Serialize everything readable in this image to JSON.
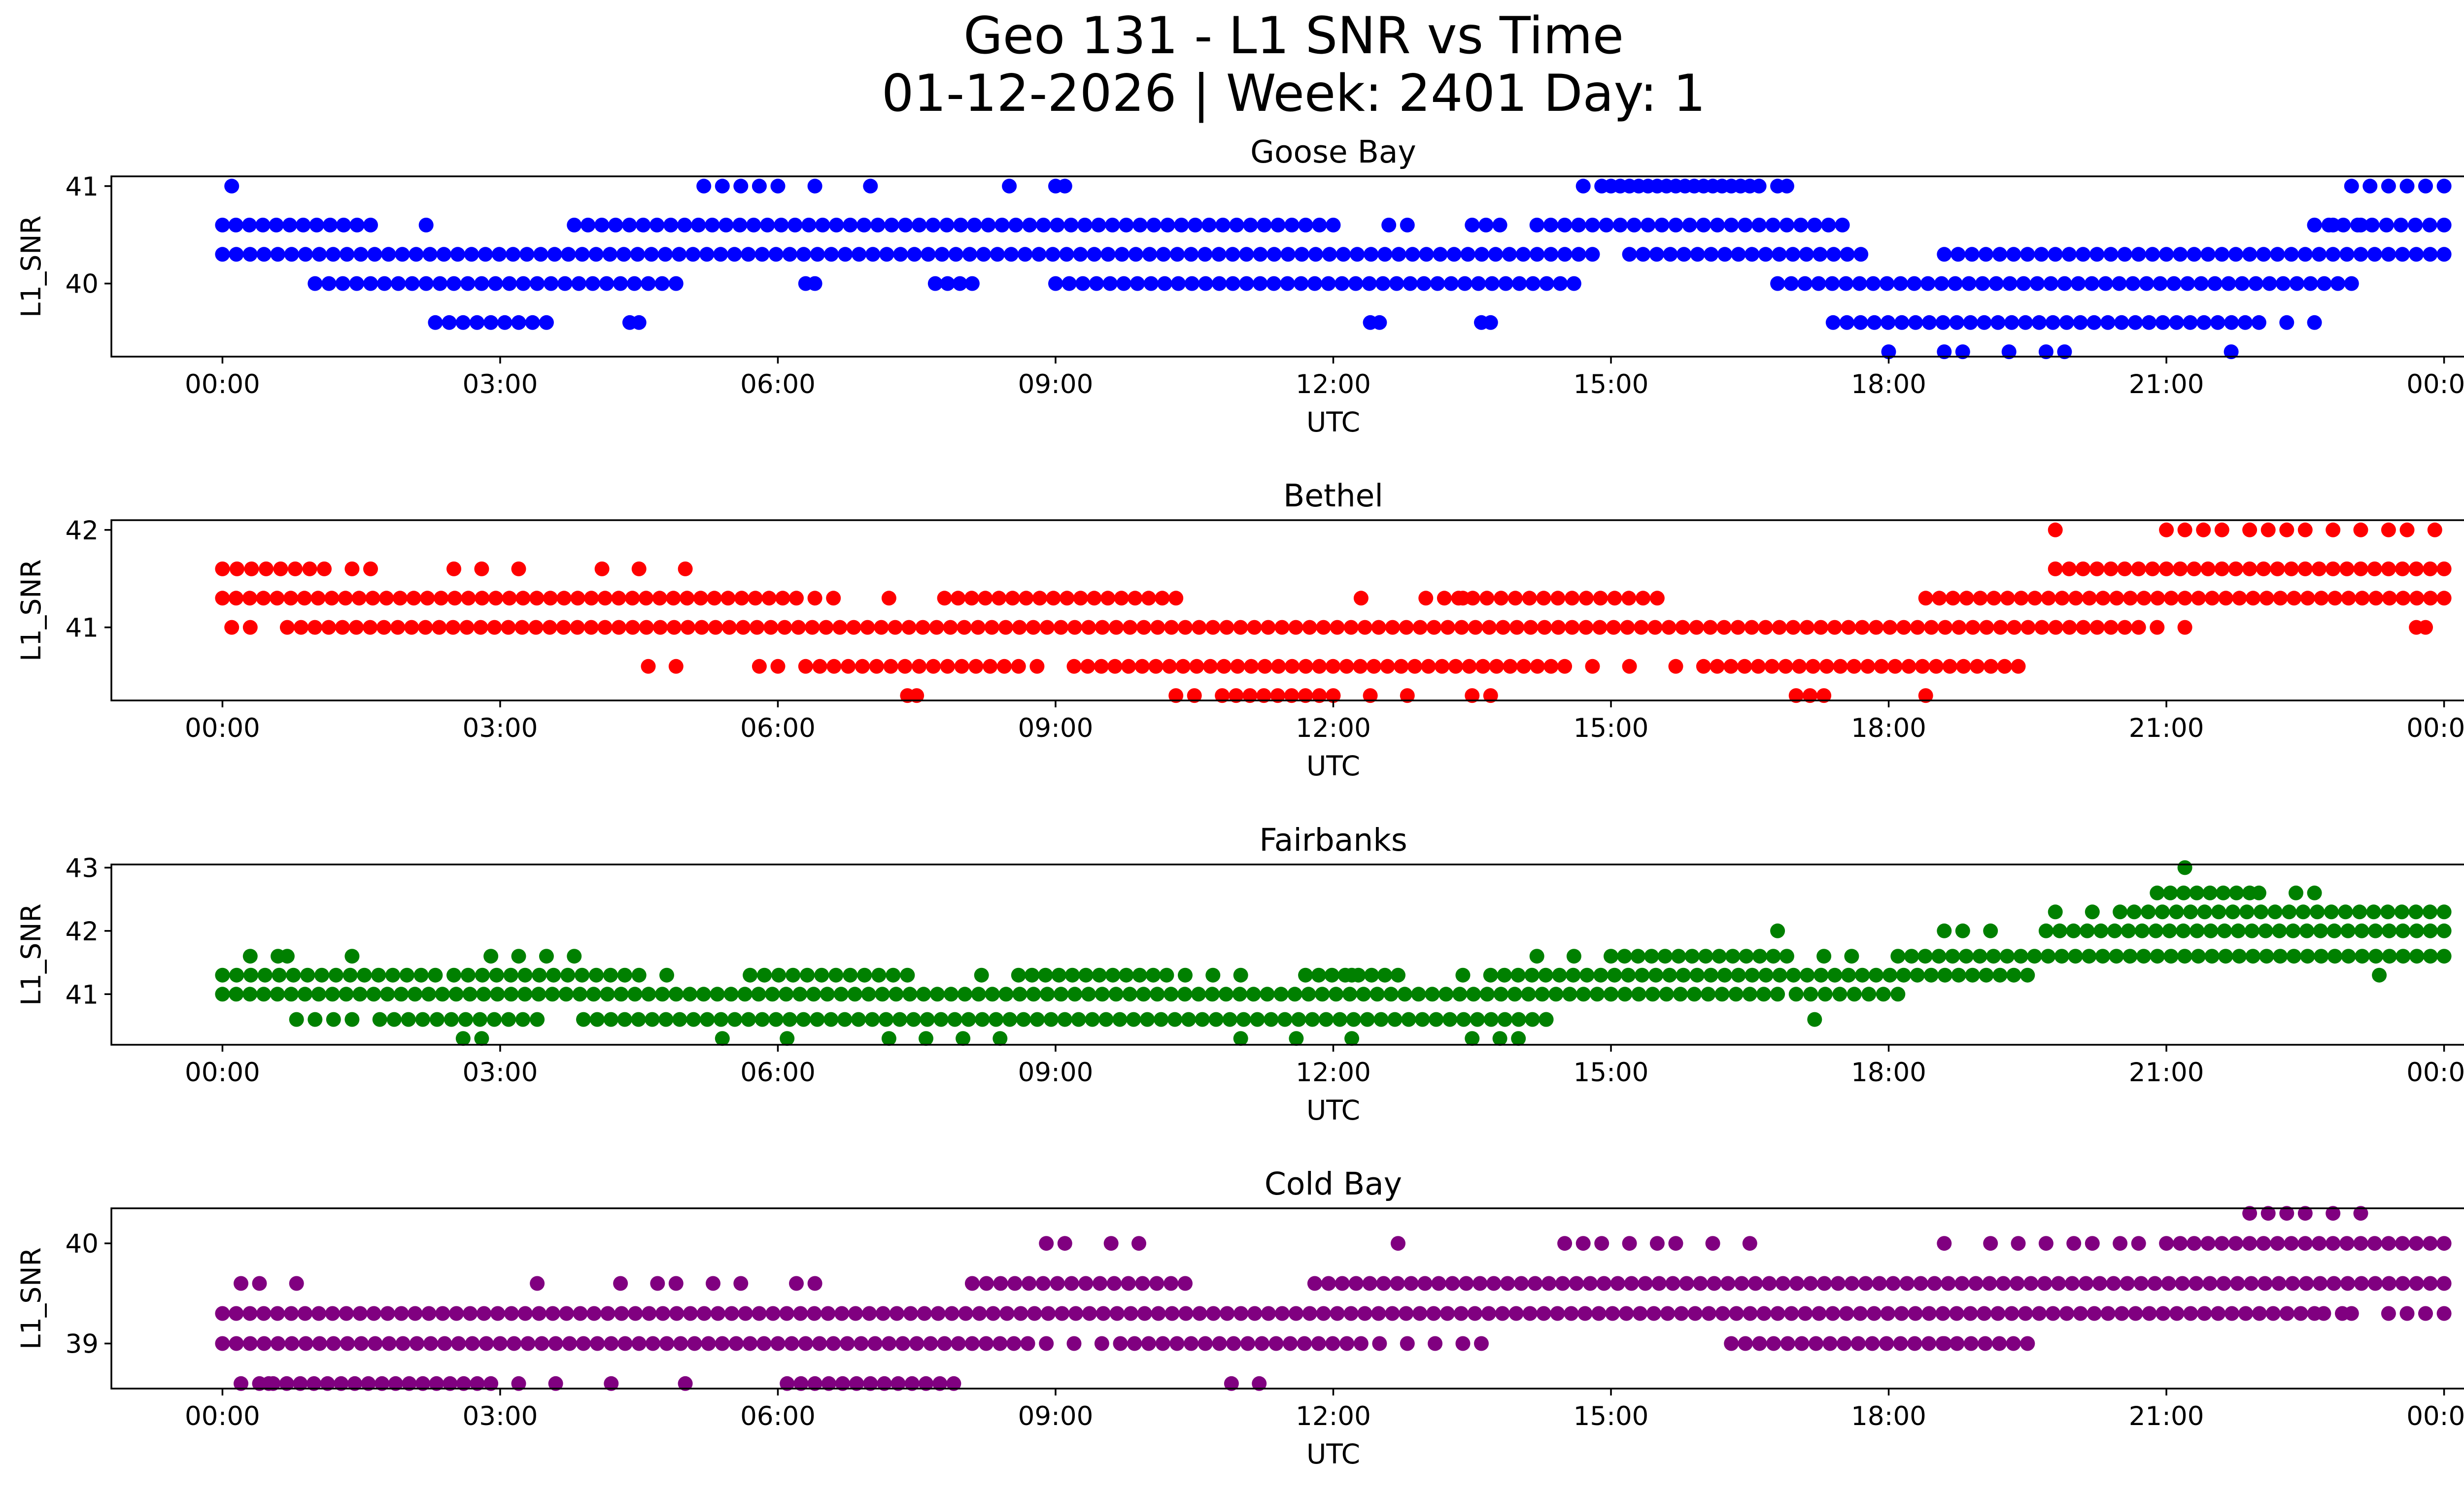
{
  "title": "Geo 131 - L1 SNR vs Time",
  "subtitle": "01-12-2026 | Week: 2401 Day: 1",
  "chart_data": [
    {
      "type": "scatter",
      "title": "Goose Bay",
      "xlabel": "UTC",
      "ylabel": "L1_SNR",
      "color": "#0000ff",
      "x_ticks": [
        "00:00",
        "03:00",
        "06:00",
        "09:00",
        "12:00",
        "15:00",
        "18:00",
        "21:00",
        "00:00"
      ],
      "xlim_hours": [
        -1.2,
        25.2
      ],
      "y_ticks": [
        40,
        41
      ],
      "ylim": [
        39.25,
        41.1
      ],
      "bands": [
        {
          "y": 40.3,
          "segments": [
            [
              0.0,
              14.8
            ],
            [
              15.2,
              17.7
            ],
            [
              18.6,
              24.0
            ]
          ]
        },
        {
          "y": 40.6,
          "segments": [
            [
              0.0,
              1.6
            ],
            [
              3.8,
              12.0
            ],
            [
              12.6,
              12.8
            ],
            [
              13.5,
              13.8
            ],
            [
              14.2,
              17.5
            ],
            [
              22.6,
              24.0
            ]
          ]
        },
        {
          "y": 40.0,
          "segments": [
            [
              1.0,
              4.9
            ],
            [
              6.3,
              6.4
            ],
            [
              7.7,
              8.1
            ],
            [
              9.0,
              14.6
            ],
            [
              16.8,
              23.0
            ]
          ]
        },
        {
          "y": 39.6,
          "segments": [
            [
              2.3,
              3.5
            ],
            [
              4.4,
              4.5
            ],
            [
              12.4,
              12.5
            ],
            [
              13.6,
              13.7
            ],
            [
              17.4,
              22.0
            ]
          ]
        }
      ],
      "scatter": [
        {
          "y": 41.0,
          "x": [
            0.1,
            5.2,
            5.4,
            5.6,
            5.8,
            6.0,
            6.4,
            7.0,
            8.5,
            9.0,
            9.1,
            14.7,
            14.9,
            15.1,
            15.3,
            15.5,
            15.7,
            15.9,
            16.1,
            16.3,
            16.5,
            16.8,
            23.0,
            23.2,
            23.4,
            23.6,
            23.8,
            24.0
          ]
        },
        {
          "y": 41.0,
          "x": [
            15.0,
            15.2,
            15.4,
            15.6,
            15.8,
            16.0,
            16.2,
            16.4,
            16.6,
            16.9
          ]
        },
        {
          "y": 40.6,
          "x": [
            2.2,
            22.6,
            22.8,
            23.1
          ]
        },
        {
          "y": 39.6,
          "x": [
            22.3,
            22.6
          ]
        },
        {
          "y": 39.3,
          "x": [
            18.0,
            18.6,
            18.8,
            19.3,
            19.7,
            19.9,
            21.7
          ]
        }
      ]
    },
    {
      "type": "scatter",
      "title": "Bethel",
      "xlabel": "UTC",
      "ylabel": "L1_SNR",
      "color": "#ff0000",
      "x_ticks": [
        "00:00",
        "03:00",
        "06:00",
        "09:00",
        "12:00",
        "15:00",
        "18:00",
        "21:00",
        "00:00"
      ],
      "xlim_hours": [
        -1.2,
        25.2
      ],
      "y_ticks": [
        41,
        42
      ],
      "ylim": [
        40.25,
        42.1
      ],
      "bands": [
        {
          "y": 41.3,
          "segments": [
            [
              0.0,
              6.2
            ],
            [
              7.8,
              10.3
            ],
            [
              13.2,
              15.5
            ],
            [
              18.4,
              24.0
            ]
          ]
        },
        {
          "y": 41.0,
          "segments": [
            [
              0.7,
              20.7
            ],
            [
              23.7,
              23.8
            ]
          ]
        },
        {
          "y": 41.6,
          "segments": [
            [
              0.0,
              1.1
            ],
            [
              19.8,
              24.0
            ]
          ]
        },
        {
          "y": 40.6,
          "segments": [
            [
              6.3,
              8.6
            ],
            [
              9.2,
              14.5
            ],
            [
              16.0,
              19.4
            ]
          ]
        },
        {
          "y": 40.3,
          "segments": [
            [
              10.8,
              12.0
            ],
            [
              17.0,
              17.3
            ]
          ]
        }
      ],
      "scatter": [
        {
          "y": 42.0,
          "x": [
            19.8,
            21.0,
            21.2,
            21.4,
            21.6,
            21.9,
            22.1,
            22.3,
            22.5,
            22.8,
            23.1,
            23.4,
            23.6,
            23.9
          ]
        },
        {
          "y": 41.6,
          "x": [
            1.4,
            1.6,
            2.5,
            2.8,
            3.2,
            4.1,
            4.5,
            5.0
          ]
        },
        {
          "y": 41.3,
          "x": [
            6.4,
            6.6,
            7.2,
            12.3,
            13.0,
            13.4
          ]
        },
        {
          "y": 41.0,
          "x": [
            0.1,
            0.3,
            20.9,
            21.2
          ]
        },
        {
          "y": 40.6,
          "x": [
            4.6,
            4.9,
            5.8,
            6.0,
            8.8,
            14.8,
            15.2,
            15.7
          ]
        },
        {
          "y": 40.3,
          "x": [
            7.4,
            7.5,
            10.3,
            10.5,
            12.4,
            12.8,
            13.5,
            13.7,
            18.4
          ]
        }
      ]
    },
    {
      "type": "scatter",
      "title": "Fairbanks",
      "xlabel": "UTC",
      "ylabel": "L1_SNR",
      "color": "#008000",
      "x_ticks": [
        "00:00",
        "03:00",
        "06:00",
        "09:00",
        "12:00",
        "15:00",
        "18:00",
        "21:00",
        "00:00"
      ],
      "xlim_hours": [
        -1.2,
        25.2
      ],
      "y_ticks": [
        41,
        42,
        43
      ],
      "ylim": [
        40.2,
        43.05
      ],
      "bands": [
        {
          "y": 41.0,
          "segments": [
            [
              0.0,
              15.0
            ],
            [
              15.0,
              16.8
            ],
            [
              17.0,
              18.1
            ]
          ]
        },
        {
          "y": 41.3,
          "segments": [
            [
              0.0,
              2.3
            ],
            [
              2.5,
              4.5
            ],
            [
              5.7,
              7.4
            ],
            [
              8.6,
              10.2
            ],
            [
              11.7,
              12.7
            ],
            [
              13.7,
              19.5
            ]
          ]
        },
        {
          "y": 40.6,
          "segments": [
            [
              1.7,
              3.4
            ],
            [
              3.9,
              14.3
            ]
          ]
        },
        {
          "y": 41.6,
          "segments": [
            [
              15.0,
              16.9
            ],
            [
              18.1,
              24.0
            ]
          ]
        },
        {
          "y": 42.0,
          "segments": [
            [
              19.7,
              24.0
            ]
          ]
        },
        {
          "y": 42.3,
          "segments": [
            [
              20.5,
              24.0
            ]
          ]
        },
        {
          "y": 42.6,
          "segments": [
            [
              20.9,
              21.9
            ]
          ]
        }
      ],
      "scatter": [
        {
          "y": 43.0,
          "x": [
            21.2
          ]
        },
        {
          "y": 42.6,
          "x": [
            22.0,
            22.4,
            22.6
          ]
        },
        {
          "y": 42.3,
          "x": [
            19.8,
            20.2
          ]
        },
        {
          "y": 42.0,
          "x": [
            16.8,
            18.6,
            18.8,
            19.1
          ]
        },
        {
          "y": 41.6,
          "x": [
            0.3,
            0.6,
            0.7,
            1.4,
            2.9,
            3.2,
            3.5,
            3.8,
            14.2,
            14.6,
            17.3,
            17.6
          ]
        },
        {
          "y": 41.3,
          "x": [
            4.8,
            8.2,
            10.4,
            10.7,
            11.0,
            12.2,
            13.4
          ]
        },
        {
          "y": 40.6,
          "x": [
            0.8,
            1.0,
            1.2,
            1.4,
            14.3,
            17.2
          ]
        },
        {
          "y": 40.3,
          "x": [
            2.6,
            2.8,
            5.4,
            6.1,
            7.2,
            7.6,
            8.0,
            8.4,
            11.0,
            11.6,
            12.2,
            13.5,
            13.8,
            14.0
          ]
        },
        {
          "y": 41.3,
          "x": [
            23.3
          ]
        }
      ]
    },
    {
      "type": "scatter",
      "title": "Cold Bay",
      "xlabel": "UTC",
      "ylabel": "L1_SNR",
      "color": "#800080",
      "x_ticks": [
        "00:00",
        "03:00",
        "06:00",
        "09:00",
        "12:00",
        "15:00",
        "18:00",
        "21:00",
        "00:00"
      ],
      "xlim_hours": [
        -1.2,
        25.2
      ],
      "y_ticks": [
        39,
        40
      ],
      "ylim": [
        38.55,
        40.35
      ],
      "bands": [
        {
          "y": 39.3,
          "segments": [
            [
              0.0,
              22.6
            ]
          ]
        },
        {
          "y": 39.0,
          "segments": [
            [
              0.0,
              8.7
            ],
            [
              9.7,
              12.3
            ],
            [
              16.3,
              19.5
            ]
          ]
        },
        {
          "y": 39.6,
          "segments": [
            [
              8.1,
              10.4
            ],
            [
              11.8,
              24.0
            ]
          ]
        },
        {
          "y": 40.0,
          "segments": [
            [
              21.0,
              24.0
            ]
          ]
        },
        {
          "y": 38.6,
          "segments": [
            [
              0.4,
              2.9
            ],
            [
              6.1,
              7.9
            ]
          ]
        }
      ],
      "scatter": [
        {
          "y": 40.3,
          "x": [
            21.9,
            22.1,
            22.3,
            22.5,
            22.8,
            23.1
          ]
        },
        {
          "y": 40.0,
          "x": [
            8.9,
            9.1,
            9.6,
            9.9,
            12.7,
            14.5,
            14.7,
            14.9,
            15.2,
            15.5,
            15.7,
            16.1,
            16.5,
            18.6,
            19.1,
            19.4,
            19.7,
            20.0,
            20.2,
            20.5,
            20.7
          ]
        },
        {
          "y": 39.6,
          "x": [
            0.2,
            0.4,
            0.8,
            3.4,
            4.3,
            4.7,
            4.9,
            5.3,
            5.6,
            6.2,
            6.4
          ]
        },
        {
          "y": 39.3,
          "x": [
            22.7,
            22.9,
            23.0,
            23.4,
            23.6,
            23.8,
            24.0
          ]
        },
        {
          "y": 39.0,
          "x": [
            8.9,
            9.2,
            9.5,
            12.5,
            12.8,
            13.1,
            13.4,
            13.6,
            18.6
          ]
        },
        {
          "y": 38.6,
          "x": [
            0.2,
            0.5,
            3.2,
            3.6,
            4.2,
            5.0,
            10.9,
            11.2
          ]
        }
      ]
    }
  ]
}
